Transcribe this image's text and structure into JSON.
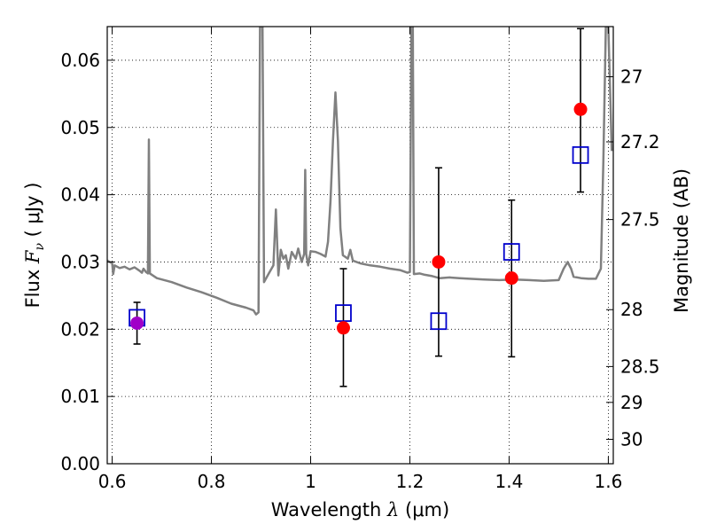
{
  "chart_data": {
    "type": "scatter",
    "xlabel": {
      "prefix": "Wavelength  ",
      "symbol": "λ",
      "unit": " (μm)"
    },
    "ylabel": {
      "prefix": "Flux  ",
      "symbol": "F",
      "subscript": "ν",
      "unit": "  ( μJy )"
    },
    "ylabel_right": "Magnitude (AB)",
    "xlim": [
      0.59,
      1.61
    ],
    "ylim": [
      0.0,
      0.065
    ],
    "grid": true,
    "x_ticks": [
      {
        "value": 0.6,
        "label": "0.6"
      },
      {
        "value": 0.8,
        "label": "0.8"
      },
      {
        "value": 1.0,
        "label": "1"
      },
      {
        "value": 1.2,
        "label": "1.2"
      },
      {
        "value": 1.4,
        "label": "1.4"
      },
      {
        "value": 1.6,
        "label": "1.6"
      }
    ],
    "y_ticks": [
      {
        "value": 0.0,
        "label": "0.00"
      },
      {
        "value": 0.01,
        "label": "0.01"
      },
      {
        "value": 0.02,
        "label": "0.02"
      },
      {
        "value": 0.03,
        "label": "0.03"
      },
      {
        "value": 0.04,
        "label": "0.04"
      },
      {
        "value": 0.05,
        "label": "0.05"
      },
      {
        "value": 0.06,
        "label": "0.06"
      }
    ],
    "right_ticks": [
      {
        "mag": 27.0,
        "label": "27"
      },
      {
        "mag": 27.2,
        "label": "27.2"
      },
      {
        "mag": 27.5,
        "label": "27.5"
      },
      {
        "mag": 28.0,
        "label": "28"
      },
      {
        "mag": 28.5,
        "label": "28.5"
      },
      {
        "mag": 29.0,
        "label": "29"
      },
      {
        "mag": 30.0,
        "label": "30"
      }
    ],
    "colors": {
      "model": "#808080",
      "observed": "#ff0000",
      "model_box": "#0000cc",
      "highlight": "#a000c8"
    },
    "series": [
      {
        "name": "model_sed",
        "style": "line",
        "points": [
          [
            0.59,
            0.0302
          ],
          [
            0.6,
            0.0298
          ],
          [
            0.602,
            0.0282
          ],
          [
            0.605,
            0.0295
          ],
          [
            0.615,
            0.0291
          ],
          [
            0.625,
            0.0293
          ],
          [
            0.635,
            0.0289
          ],
          [
            0.645,
            0.0292
          ],
          [
            0.655,
            0.0287
          ],
          [
            0.66,
            0.0284
          ],
          [
            0.663,
            0.029
          ],
          [
            0.668,
            0.0285
          ],
          [
            0.672,
            0.0283
          ],
          [
            0.674,
            0.0482
          ],
          [
            0.676,
            0.0283
          ],
          [
            0.69,
            0.0276
          ],
          [
            0.72,
            0.027
          ],
          [
            0.75,
            0.0262
          ],
          [
            0.78,
            0.0255
          ],
          [
            0.81,
            0.0247
          ],
          [
            0.84,
            0.0238
          ],
          [
            0.87,
            0.0232
          ],
          [
            0.885,
            0.0228
          ],
          [
            0.89,
            0.0222
          ],
          [
            0.895,
            0.0225
          ],
          [
            0.898,
            0.066
          ],
          [
            0.903,
            0.066
          ],
          [
            0.906,
            0.027
          ],
          [
            0.915,
            0.0282
          ],
          [
            0.925,
            0.0295
          ],
          [
            0.93,
            0.0378
          ],
          [
            0.935,
            0.028
          ],
          [
            0.94,
            0.0318
          ],
          [
            0.945,
            0.0305
          ],
          [
            0.95,
            0.031
          ],
          [
            0.955,
            0.029
          ],
          [
            0.962,
            0.0315
          ],
          [
            0.97,
            0.0305
          ],
          [
            0.975,
            0.032
          ],
          [
            0.982,
            0.03
          ],
          [
            0.987,
            0.0312
          ],
          [
            0.989,
            0.0437
          ],
          [
            0.991,
            0.0312
          ],
          [
            0.995,
            0.0295
          ],
          [
            1.0,
            0.0316
          ],
          [
            1.01,
            0.0315
          ],
          [
            1.02,
            0.0312
          ],
          [
            1.03,
            0.0308
          ],
          [
            1.035,
            0.033
          ],
          [
            1.04,
            0.039
          ],
          [
            1.045,
            0.048
          ],
          [
            1.05,
            0.0552
          ],
          [
            1.055,
            0.048
          ],
          [
            1.06,
            0.035
          ],
          [
            1.065,
            0.031
          ],
          [
            1.075,
            0.0305
          ],
          [
            1.08,
            0.0318
          ],
          [
            1.085,
            0.0302
          ],
          [
            1.1,
            0.0298
          ],
          [
            1.12,
            0.0295
          ],
          [
            1.14,
            0.0293
          ],
          [
            1.16,
            0.029
          ],
          [
            1.18,
            0.0288
          ],
          [
            1.195,
            0.0284
          ],
          [
            1.2,
            0.0285
          ],
          [
            1.203,
            0.066
          ],
          [
            1.206,
            0.066
          ],
          [
            1.208,
            0.0282
          ],
          [
            1.22,
            0.0283
          ],
          [
            1.23,
            0.0281
          ],
          [
            1.245,
            0.0279
          ],
          [
            1.26,
            0.0276
          ],
          [
            1.28,
            0.0277
          ],
          [
            1.3,
            0.0276
          ],
          [
            1.32,
            0.0275
          ],
          [
            1.35,
            0.0274
          ],
          [
            1.38,
            0.0273
          ],
          [
            1.41,
            0.0274
          ],
          [
            1.44,
            0.0273
          ],
          [
            1.47,
            0.0272
          ],
          [
            1.5,
            0.0273
          ],
          [
            1.51,
            0.029
          ],
          [
            1.518,
            0.03
          ],
          [
            1.525,
            0.029
          ],
          [
            1.53,
            0.0278
          ],
          [
            1.545,
            0.0276
          ],
          [
            1.56,
            0.0275
          ],
          [
            1.575,
            0.0275
          ],
          [
            1.585,
            0.029
          ],
          [
            1.59,
            0.045
          ],
          [
            1.595,
            0.066
          ],
          [
            1.6,
            0.066
          ],
          [
            1.607,
            0.0465
          ]
        ]
      },
      {
        "name": "observed",
        "style": "points",
        "points": [
          {
            "x": 0.65,
            "y": 0.0209,
            "err_low": 0.0178,
            "err_high": 0.024
          },
          {
            "x": 1.066,
            "y": 0.0202,
            "err_low": 0.0115,
            "err_high": 0.029
          },
          {
            "x": 1.258,
            "y": 0.03,
            "err_low": 0.016,
            "err_high": 0.044
          },
          {
            "x": 1.405,
            "y": 0.0276,
            "err_low": 0.0159,
            "err_high": 0.0392
          },
          {
            "x": 1.544,
            "y": 0.0527,
            "err_low": 0.0404,
            "err_high": 0.0647
          }
        ]
      },
      {
        "name": "model_photometry",
        "style": "open-squares",
        "points": [
          {
            "x": 0.65,
            "y": 0.0217
          },
          {
            "x": 1.066,
            "y": 0.0224
          },
          {
            "x": 1.258,
            "y": 0.0212
          },
          {
            "x": 1.405,
            "y": 0.0315
          },
          {
            "x": 1.544,
            "y": 0.0459
          }
        ]
      }
    ]
  }
}
